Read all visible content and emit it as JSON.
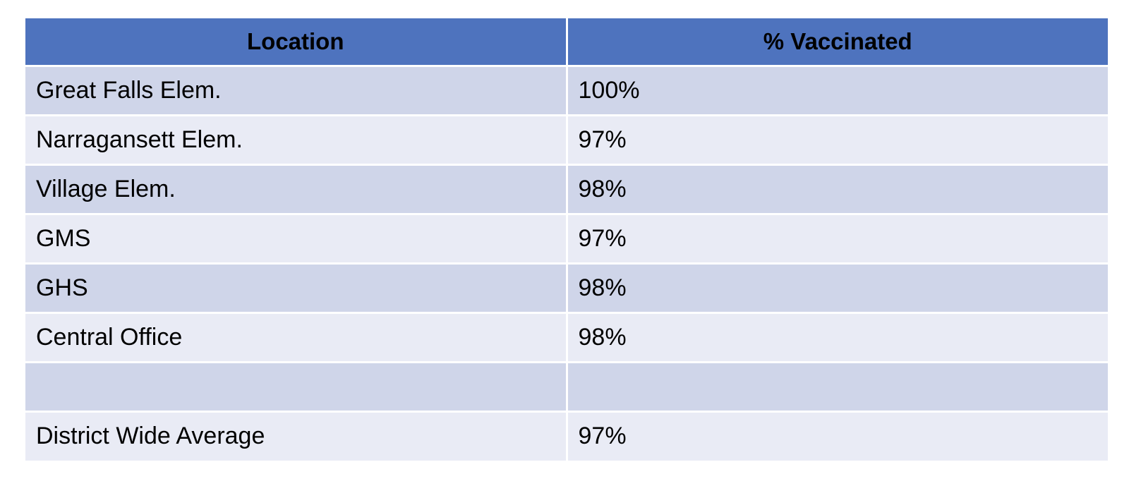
{
  "chart_data": {
    "type": "table",
    "columns": [
      "Location",
      "% Vaccinated"
    ],
    "rows": [
      [
        "Great Falls Elem.",
        "100%"
      ],
      [
        "Narragansett Elem.",
        "97%"
      ],
      [
        "Village Elem.",
        "98%"
      ],
      [
        "GMS",
        "97%"
      ],
      [
        "GHS",
        "98%"
      ],
      [
        "Central Office",
        "98%"
      ],
      [
        "",
        ""
      ],
      [
        "District Wide Average",
        "97%"
      ]
    ]
  },
  "colors": {
    "header": "#4e73be",
    "row_odd": "#cfd5e9",
    "row_even": "#e9ebf5"
  }
}
